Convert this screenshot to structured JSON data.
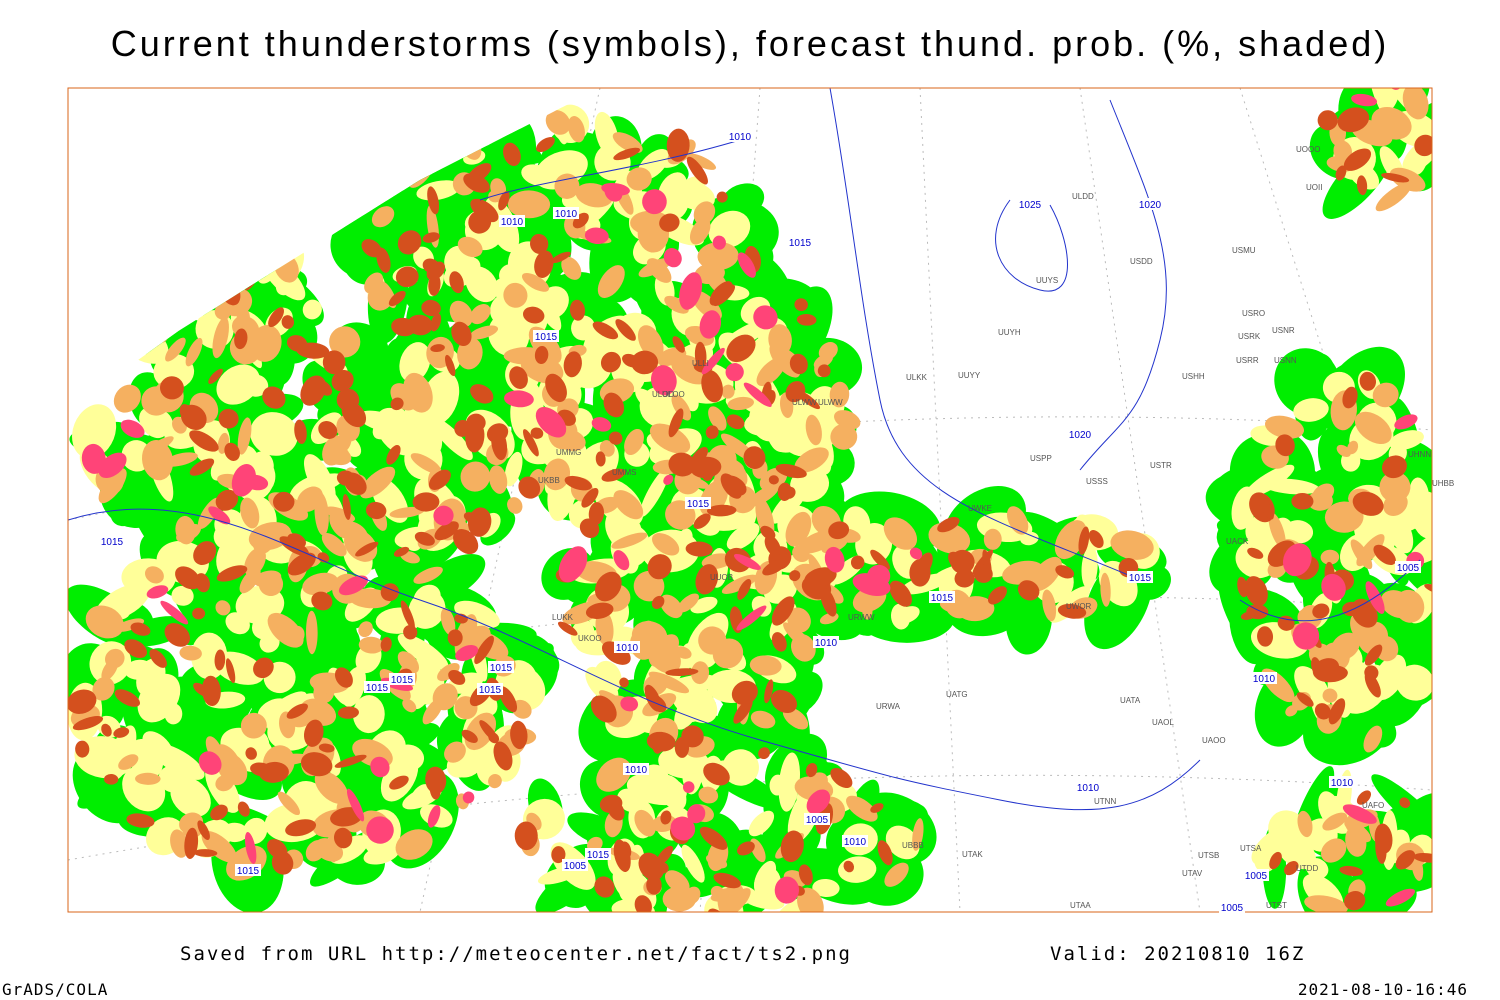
{
  "header": {
    "title": "Current thunderstorms (symbols), forecast thund. prob. (%, shaded)"
  },
  "footer": {
    "source": "Saved from URL http://meteocenter.net/fact/ts2.png",
    "valid": "Valid: 20210810 16Z",
    "software": "GrADS/COLA",
    "timestamp": "2021-08-10-16:46"
  },
  "isobar_labels": [
    "1010",
    "1010",
    "1010",
    "1015",
    "1015",
    "1015",
    "1015",
    "1015",
    "1015",
    "1015",
    "1015",
    "1015",
    "1015",
    "1005",
    "1025",
    "1020",
    "1020",
    "1010",
    "1010",
    "1010",
    "1010",
    "1010",
    "1010",
    "1010",
    "1005",
    "1005",
    "1005",
    "1015",
    "1005",
    "1015"
  ],
  "station_labels": [
    "ULDD",
    "USDD",
    "USMU",
    "UUYS",
    "UUYH",
    "ULKK",
    "UUYY",
    "ULWW",
    "USRO",
    "USNR",
    "USRK",
    "USRR",
    "USNN",
    "USHH",
    "USTR",
    "USSS",
    "UWKE",
    "UACK",
    "UATG",
    "UATA",
    "UAOL",
    "UAOO",
    "UTNN",
    "UTAK",
    "UBBB",
    "UTSB",
    "UTAV",
    "UTAA",
    "UOOO",
    "UOII",
    "UMMG",
    "UMMS",
    "ULLI",
    "ULOO",
    "UKBB",
    "LUKK",
    "UKOO",
    "UUOB",
    "URWA",
    "URWW",
    "UWOR",
    "USPP",
    "UTSA",
    "UTST",
    "UTDD",
    "UAFO",
    "ULWW",
    "UHBB",
    "UHNN",
    "ULOD"
  ]
}
